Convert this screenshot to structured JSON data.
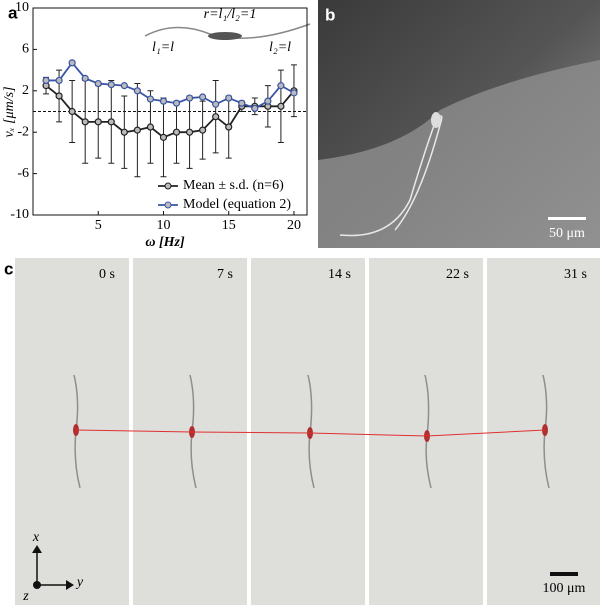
{
  "chart_data": {
    "type": "line",
    "xlabel": "ω [Hz]",
    "ylabel": "vₓ [μm/s]",
    "xlim": [
      0,
      21
    ],
    "xticks": [
      5,
      10,
      15,
      20
    ],
    "ylim": [
      -10,
      10
    ],
    "yticks": [
      -10,
      -6,
      -2,
      2,
      6,
      10
    ],
    "hline": 0,
    "x": [
      1,
      2,
      3,
      4,
      5,
      6,
      7,
      8,
      9,
      10,
      11,
      12,
      13,
      14,
      15,
      16,
      17,
      18,
      19,
      20
    ],
    "series": [
      {
        "name": "Mean ± s.d. (n=6)",
        "color": "#222222",
        "values": [
          2.5,
          1.5,
          0,
          -1,
          -1,
          -1,
          -2,
          -1.8,
          -1.5,
          -2.5,
          -2,
          -2,
          -1.8,
          -0.5,
          -1.5,
          0.5,
          0.5,
          0.5,
          0.5,
          2
        ],
        "errors": [
          0.8,
          2.5,
          3,
          4,
          3.5,
          4,
          3.5,
          4.5,
          3.5,
          3.8,
          3,
          3.5,
          2.8,
          3.5,
          3,
          0.5,
          0.8,
          2,
          3.5,
          2.5
        ]
      },
      {
        "name": "Model (equation 2)",
        "color": "#3a55a4",
        "values": [
          3,
          3,
          4.7,
          3.2,
          2.7,
          2.6,
          2.5,
          2,
          1.2,
          1,
          0.8,
          1.3,
          1.4,
          0.7,
          1.3,
          0.8,
          0.3,
          1,
          2.5,
          1.8
        ]
      }
    ],
    "annotations": [
      "r=l₁/l₂=1",
      "l₁=l",
      "l₂=l"
    ]
  },
  "panels": {
    "labels": [
      "a",
      "b",
      "c"
    ],
    "b_scale": "50 μm",
    "c_times": [
      "0 s",
      "7 s",
      "14 s",
      "22 s",
      "31 s"
    ],
    "c_scale": "100 μm",
    "c_axes": [
      "x",
      "y",
      "z"
    ]
  }
}
